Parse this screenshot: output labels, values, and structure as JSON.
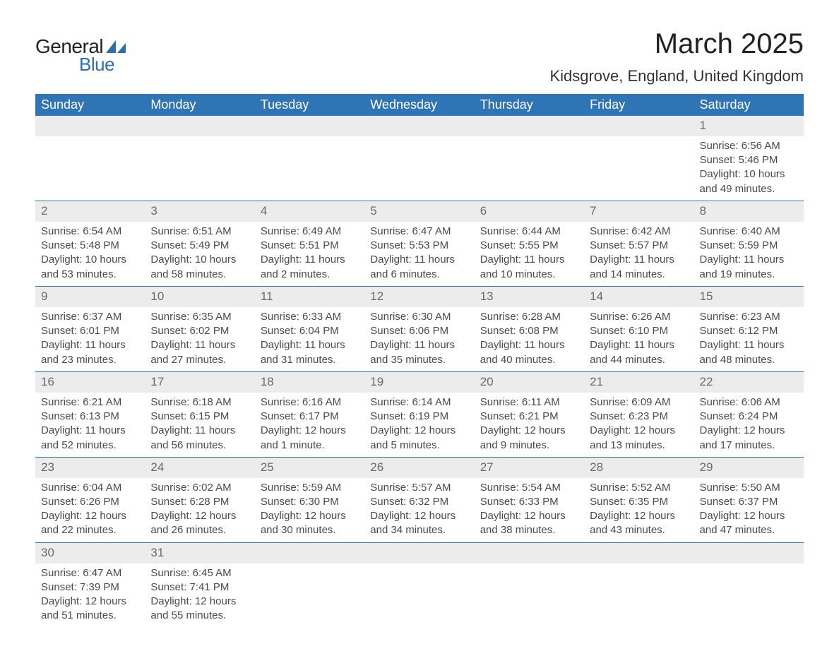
{
  "logo": {
    "text_general": "General",
    "text_blue": "Blue",
    "sail_color": "#2a6fb0"
  },
  "header": {
    "month_title": "March 2025",
    "location": "Kidsgrove, England, United Kingdom"
  },
  "calendar": {
    "type": "table",
    "header_bg": "#2f74b5",
    "header_fg": "#ffffff",
    "daynum_bg": "#ececec",
    "border_color": "#2f74b5",
    "text_color": "#4a4a4a",
    "font_size_body": 15,
    "font_size_header": 18,
    "font_size_title": 40,
    "font_size_location": 22,
    "columns": [
      "Sunday",
      "Monday",
      "Tuesday",
      "Wednesday",
      "Thursday",
      "Friday",
      "Saturday"
    ],
    "weeks": [
      [
        null,
        null,
        null,
        null,
        null,
        null,
        {
          "n": "1",
          "sunrise": "Sunrise: 6:56 AM",
          "sunset": "Sunset: 5:46 PM",
          "daylight": "Daylight: 10 hours and 49 minutes."
        }
      ],
      [
        {
          "n": "2",
          "sunrise": "Sunrise: 6:54 AM",
          "sunset": "Sunset: 5:48 PM",
          "daylight": "Daylight: 10 hours and 53 minutes."
        },
        {
          "n": "3",
          "sunrise": "Sunrise: 6:51 AM",
          "sunset": "Sunset: 5:49 PM",
          "daylight": "Daylight: 10 hours and 58 minutes."
        },
        {
          "n": "4",
          "sunrise": "Sunrise: 6:49 AM",
          "sunset": "Sunset: 5:51 PM",
          "daylight": "Daylight: 11 hours and 2 minutes."
        },
        {
          "n": "5",
          "sunrise": "Sunrise: 6:47 AM",
          "sunset": "Sunset: 5:53 PM",
          "daylight": "Daylight: 11 hours and 6 minutes."
        },
        {
          "n": "6",
          "sunrise": "Sunrise: 6:44 AM",
          "sunset": "Sunset: 5:55 PM",
          "daylight": "Daylight: 11 hours and 10 minutes."
        },
        {
          "n": "7",
          "sunrise": "Sunrise: 6:42 AM",
          "sunset": "Sunset: 5:57 PM",
          "daylight": "Daylight: 11 hours and 14 minutes."
        },
        {
          "n": "8",
          "sunrise": "Sunrise: 6:40 AM",
          "sunset": "Sunset: 5:59 PM",
          "daylight": "Daylight: 11 hours and 19 minutes."
        }
      ],
      [
        {
          "n": "9",
          "sunrise": "Sunrise: 6:37 AM",
          "sunset": "Sunset: 6:01 PM",
          "daylight": "Daylight: 11 hours and 23 minutes."
        },
        {
          "n": "10",
          "sunrise": "Sunrise: 6:35 AM",
          "sunset": "Sunset: 6:02 PM",
          "daylight": "Daylight: 11 hours and 27 minutes."
        },
        {
          "n": "11",
          "sunrise": "Sunrise: 6:33 AM",
          "sunset": "Sunset: 6:04 PM",
          "daylight": "Daylight: 11 hours and 31 minutes."
        },
        {
          "n": "12",
          "sunrise": "Sunrise: 6:30 AM",
          "sunset": "Sunset: 6:06 PM",
          "daylight": "Daylight: 11 hours and 35 minutes."
        },
        {
          "n": "13",
          "sunrise": "Sunrise: 6:28 AM",
          "sunset": "Sunset: 6:08 PM",
          "daylight": "Daylight: 11 hours and 40 minutes."
        },
        {
          "n": "14",
          "sunrise": "Sunrise: 6:26 AM",
          "sunset": "Sunset: 6:10 PM",
          "daylight": "Daylight: 11 hours and 44 minutes."
        },
        {
          "n": "15",
          "sunrise": "Sunrise: 6:23 AM",
          "sunset": "Sunset: 6:12 PM",
          "daylight": "Daylight: 11 hours and 48 minutes."
        }
      ],
      [
        {
          "n": "16",
          "sunrise": "Sunrise: 6:21 AM",
          "sunset": "Sunset: 6:13 PM",
          "daylight": "Daylight: 11 hours and 52 minutes."
        },
        {
          "n": "17",
          "sunrise": "Sunrise: 6:18 AM",
          "sunset": "Sunset: 6:15 PM",
          "daylight": "Daylight: 11 hours and 56 minutes."
        },
        {
          "n": "18",
          "sunrise": "Sunrise: 6:16 AM",
          "sunset": "Sunset: 6:17 PM",
          "daylight": "Daylight: 12 hours and 1 minute."
        },
        {
          "n": "19",
          "sunrise": "Sunrise: 6:14 AM",
          "sunset": "Sunset: 6:19 PM",
          "daylight": "Daylight: 12 hours and 5 minutes."
        },
        {
          "n": "20",
          "sunrise": "Sunrise: 6:11 AM",
          "sunset": "Sunset: 6:21 PM",
          "daylight": "Daylight: 12 hours and 9 minutes."
        },
        {
          "n": "21",
          "sunrise": "Sunrise: 6:09 AM",
          "sunset": "Sunset: 6:23 PM",
          "daylight": "Daylight: 12 hours and 13 minutes."
        },
        {
          "n": "22",
          "sunrise": "Sunrise: 6:06 AM",
          "sunset": "Sunset: 6:24 PM",
          "daylight": "Daylight: 12 hours and 17 minutes."
        }
      ],
      [
        {
          "n": "23",
          "sunrise": "Sunrise: 6:04 AM",
          "sunset": "Sunset: 6:26 PM",
          "daylight": "Daylight: 12 hours and 22 minutes."
        },
        {
          "n": "24",
          "sunrise": "Sunrise: 6:02 AM",
          "sunset": "Sunset: 6:28 PM",
          "daylight": "Daylight: 12 hours and 26 minutes."
        },
        {
          "n": "25",
          "sunrise": "Sunrise: 5:59 AM",
          "sunset": "Sunset: 6:30 PM",
          "daylight": "Daylight: 12 hours and 30 minutes."
        },
        {
          "n": "26",
          "sunrise": "Sunrise: 5:57 AM",
          "sunset": "Sunset: 6:32 PM",
          "daylight": "Daylight: 12 hours and 34 minutes."
        },
        {
          "n": "27",
          "sunrise": "Sunrise: 5:54 AM",
          "sunset": "Sunset: 6:33 PM",
          "daylight": "Daylight: 12 hours and 38 minutes."
        },
        {
          "n": "28",
          "sunrise": "Sunrise: 5:52 AM",
          "sunset": "Sunset: 6:35 PM",
          "daylight": "Daylight: 12 hours and 43 minutes."
        },
        {
          "n": "29",
          "sunrise": "Sunrise: 5:50 AM",
          "sunset": "Sunset: 6:37 PM",
          "daylight": "Daylight: 12 hours and 47 minutes."
        }
      ],
      [
        {
          "n": "30",
          "sunrise": "Sunrise: 6:47 AM",
          "sunset": "Sunset: 7:39 PM",
          "daylight": "Daylight: 12 hours and 51 minutes."
        },
        {
          "n": "31",
          "sunrise": "Sunrise: 6:45 AM",
          "sunset": "Sunset: 7:41 PM",
          "daylight": "Daylight: 12 hours and 55 minutes."
        },
        null,
        null,
        null,
        null,
        null
      ]
    ]
  }
}
